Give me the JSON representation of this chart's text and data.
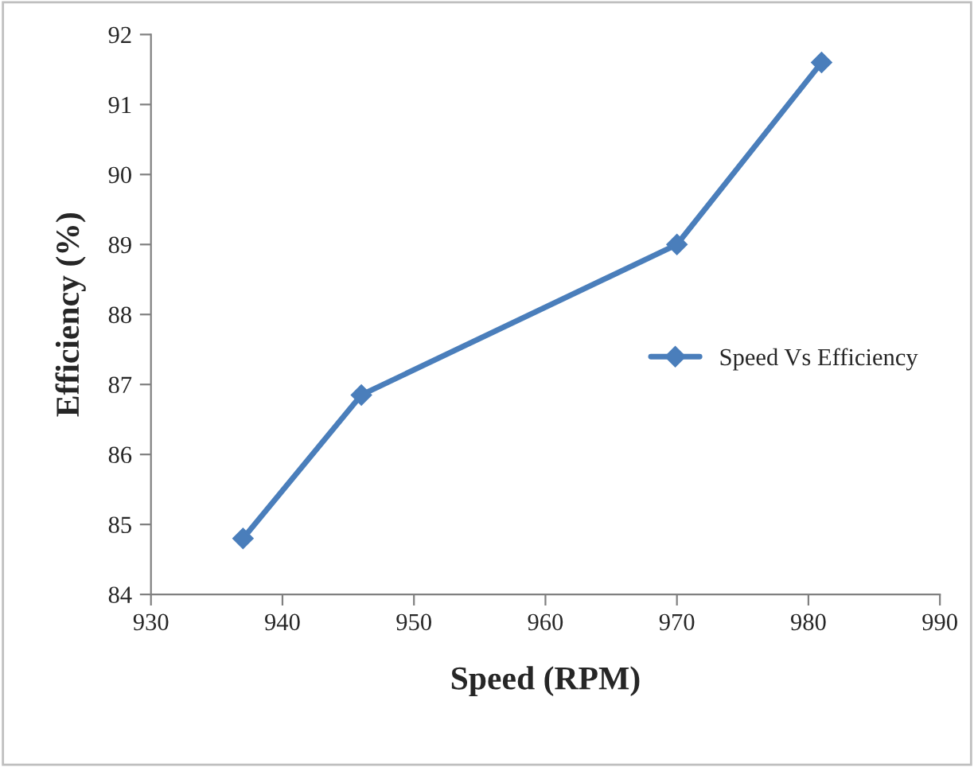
{
  "chart_data": {
    "type": "line",
    "xlabel": "Speed (RPM)",
    "ylabel": "Efficiency (%)",
    "x": [
      937,
      946,
      970,
      981
    ],
    "series": [
      {
        "name": "Speed Vs Efficiency",
        "color": "#4a7ebb",
        "values": [
          84.8,
          86.85,
          89.0,
          91.6
        ]
      }
    ],
    "xlim": [
      930,
      990
    ],
    "xticks": [
      930,
      940,
      950,
      960,
      970,
      980,
      990
    ],
    "ylim": [
      84,
      92
    ],
    "yticks": [
      84,
      85,
      86,
      87,
      88,
      89,
      90,
      91,
      92
    ],
    "grid": false,
    "legend": "right",
    "marker": "diamond",
    "line_style": "solid"
  }
}
